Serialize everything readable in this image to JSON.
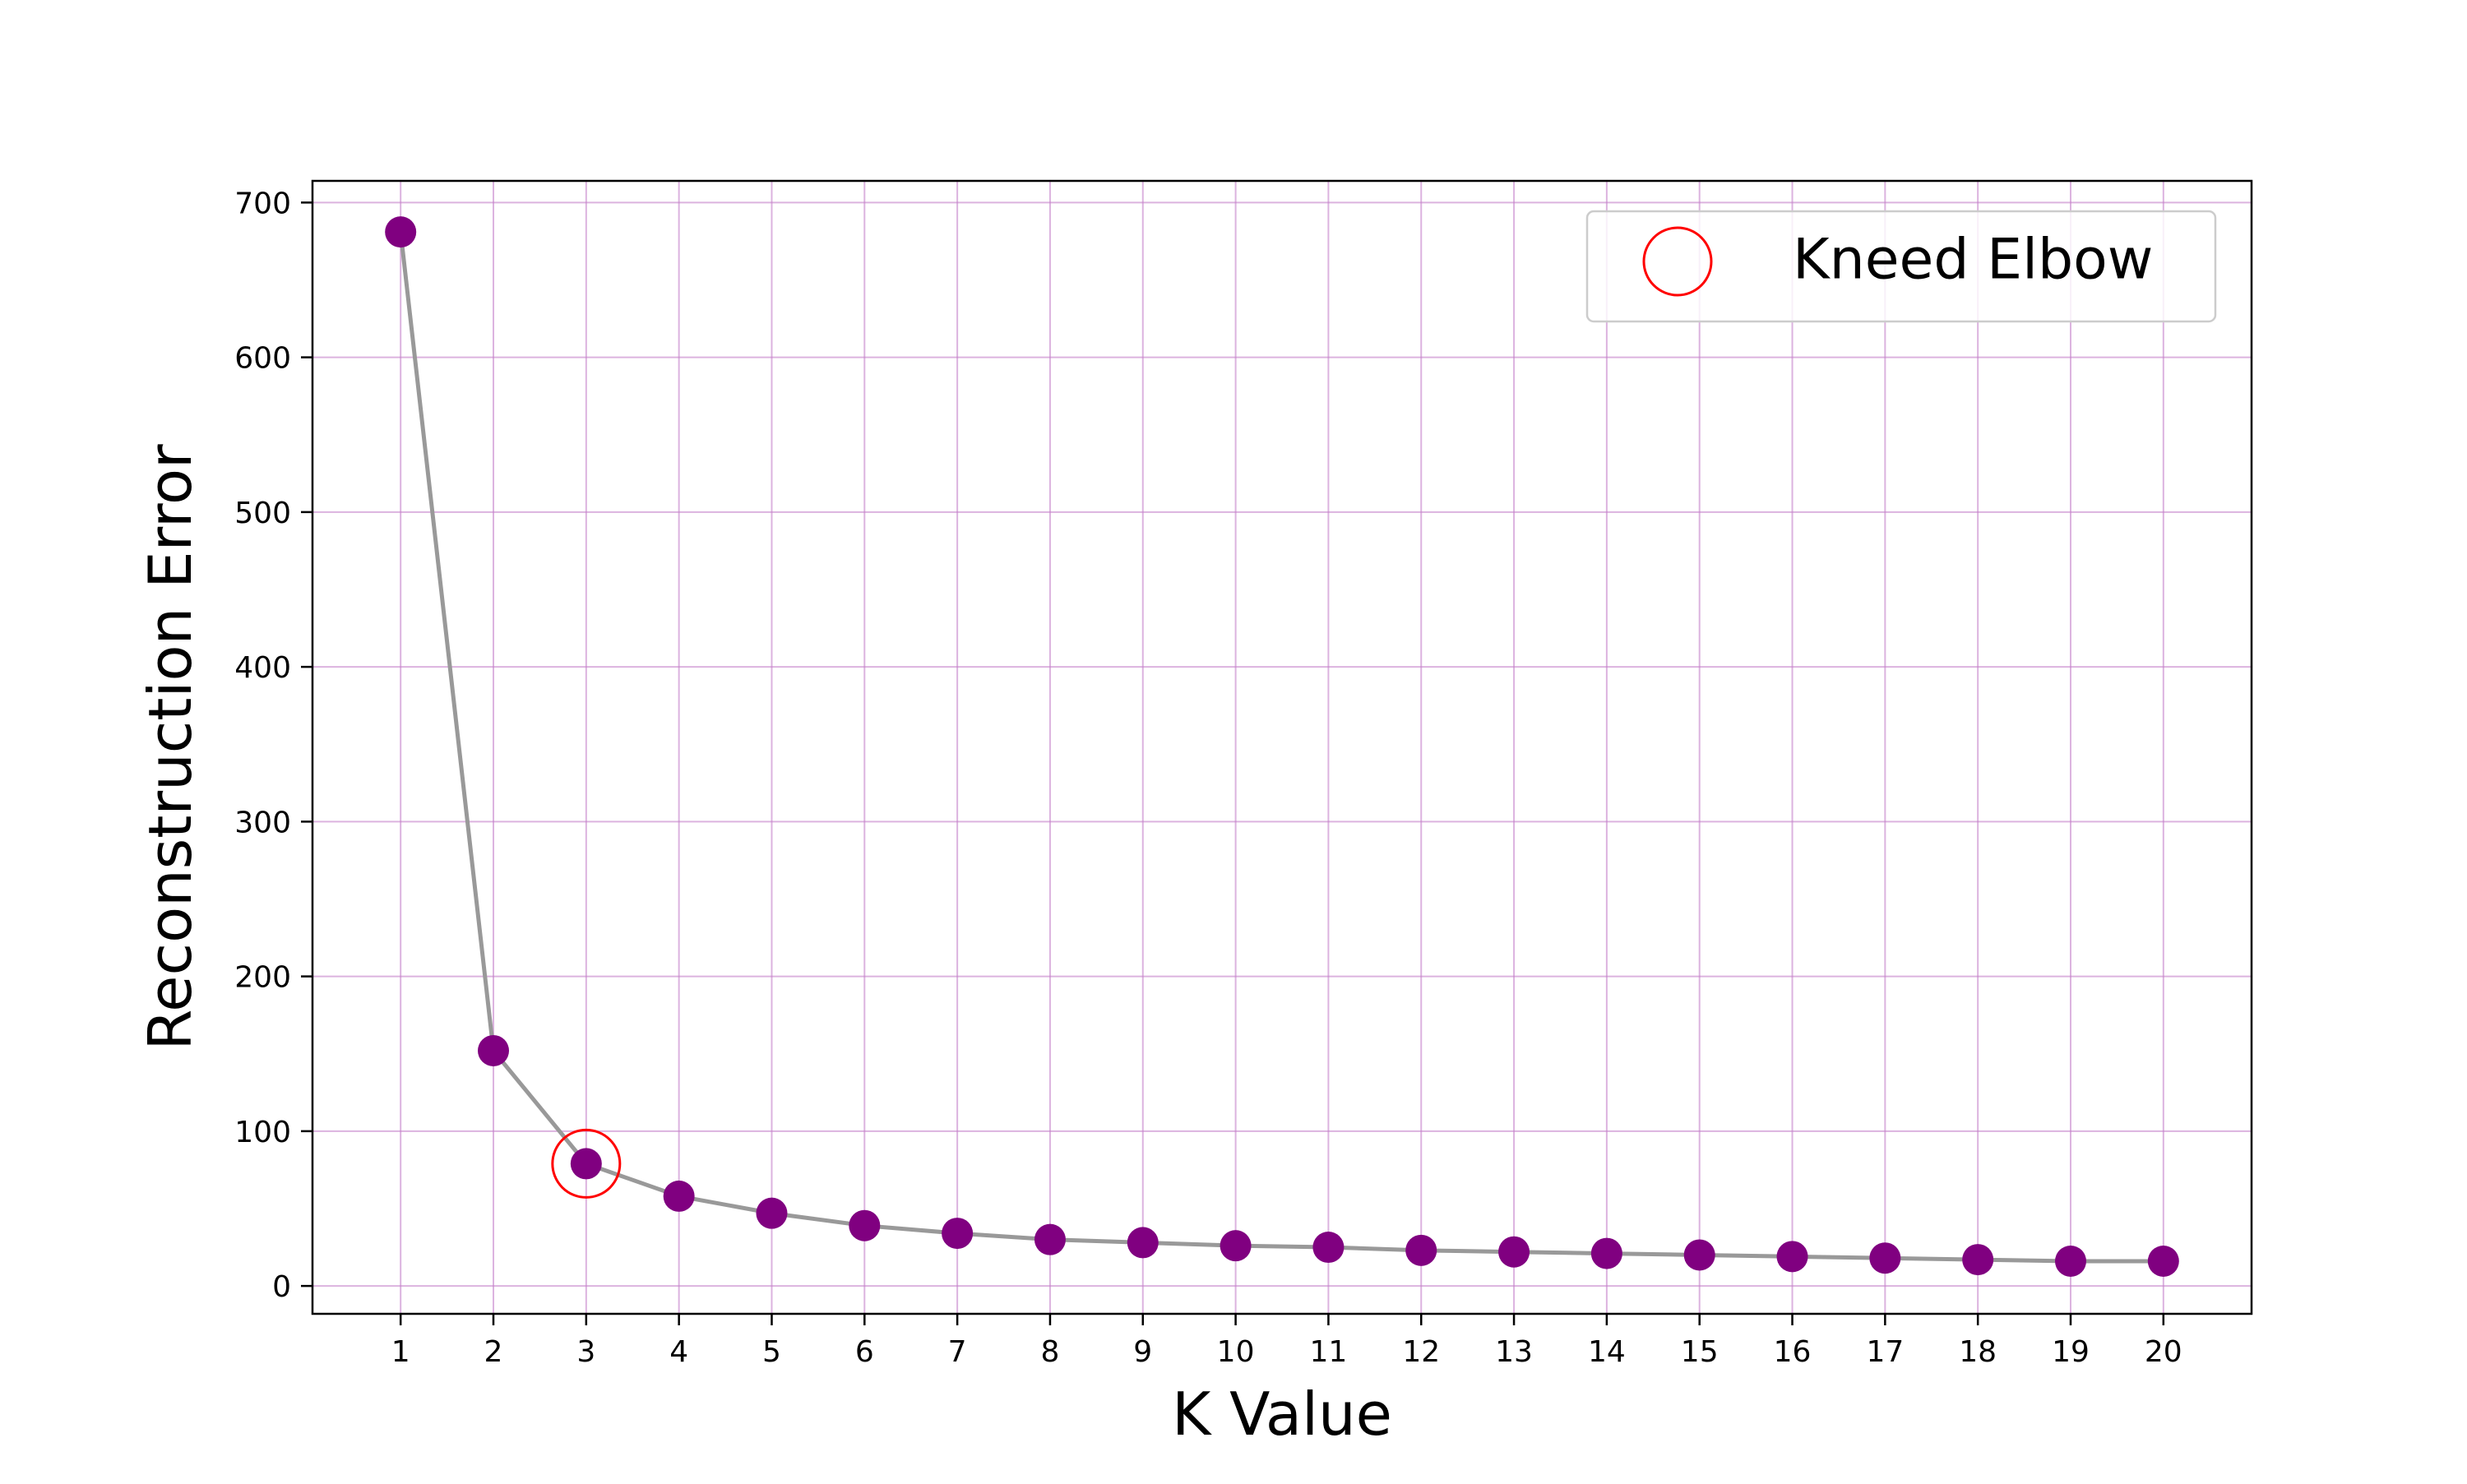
{
  "chart_data": {
    "type": "line",
    "title": "",
    "xlabel": "K Value",
    "ylabel": "Reconstruction Error",
    "x": [
      1,
      2,
      3,
      4,
      5,
      6,
      7,
      8,
      9,
      10,
      11,
      12,
      13,
      14,
      15,
      16,
      17,
      18,
      19,
      20
    ],
    "x_tick_labels": [
      "1",
      "2",
      "3",
      "4",
      "5",
      "6",
      "7",
      "8",
      "9",
      "10",
      "11",
      "12",
      "13",
      "14",
      "15",
      "16",
      "17",
      "18",
      "19",
      "20"
    ],
    "series": [
      {
        "values": [
          681,
          152,
          79,
          58,
          47,
          39,
          34,
          30,
          28,
          26,
          25,
          23,
          22,
          21,
          20,
          19,
          18,
          17,
          16,
          16
        ]
      }
    ],
    "xlim": [
      0.05,
      20.95
    ],
    "ylim": [
      -18,
      714
    ],
    "y_ticks": [
      0,
      100,
      200,
      300,
      400,
      500,
      600,
      700
    ],
    "y_tick_labels": [
      "0",
      "100",
      "200",
      "300",
      "400",
      "500",
      "600",
      "700"
    ],
    "grid": true,
    "grid_color": "#c580c9",
    "line_color": "#999999",
    "marker_color": "#800080",
    "highlight": {
      "label": "Kneed Elbow",
      "x": 3,
      "y": 79,
      "color": "#ff0000"
    },
    "legend": {
      "placement": "top-right",
      "entries": [
        "Kneed Elbow"
      ]
    }
  }
}
